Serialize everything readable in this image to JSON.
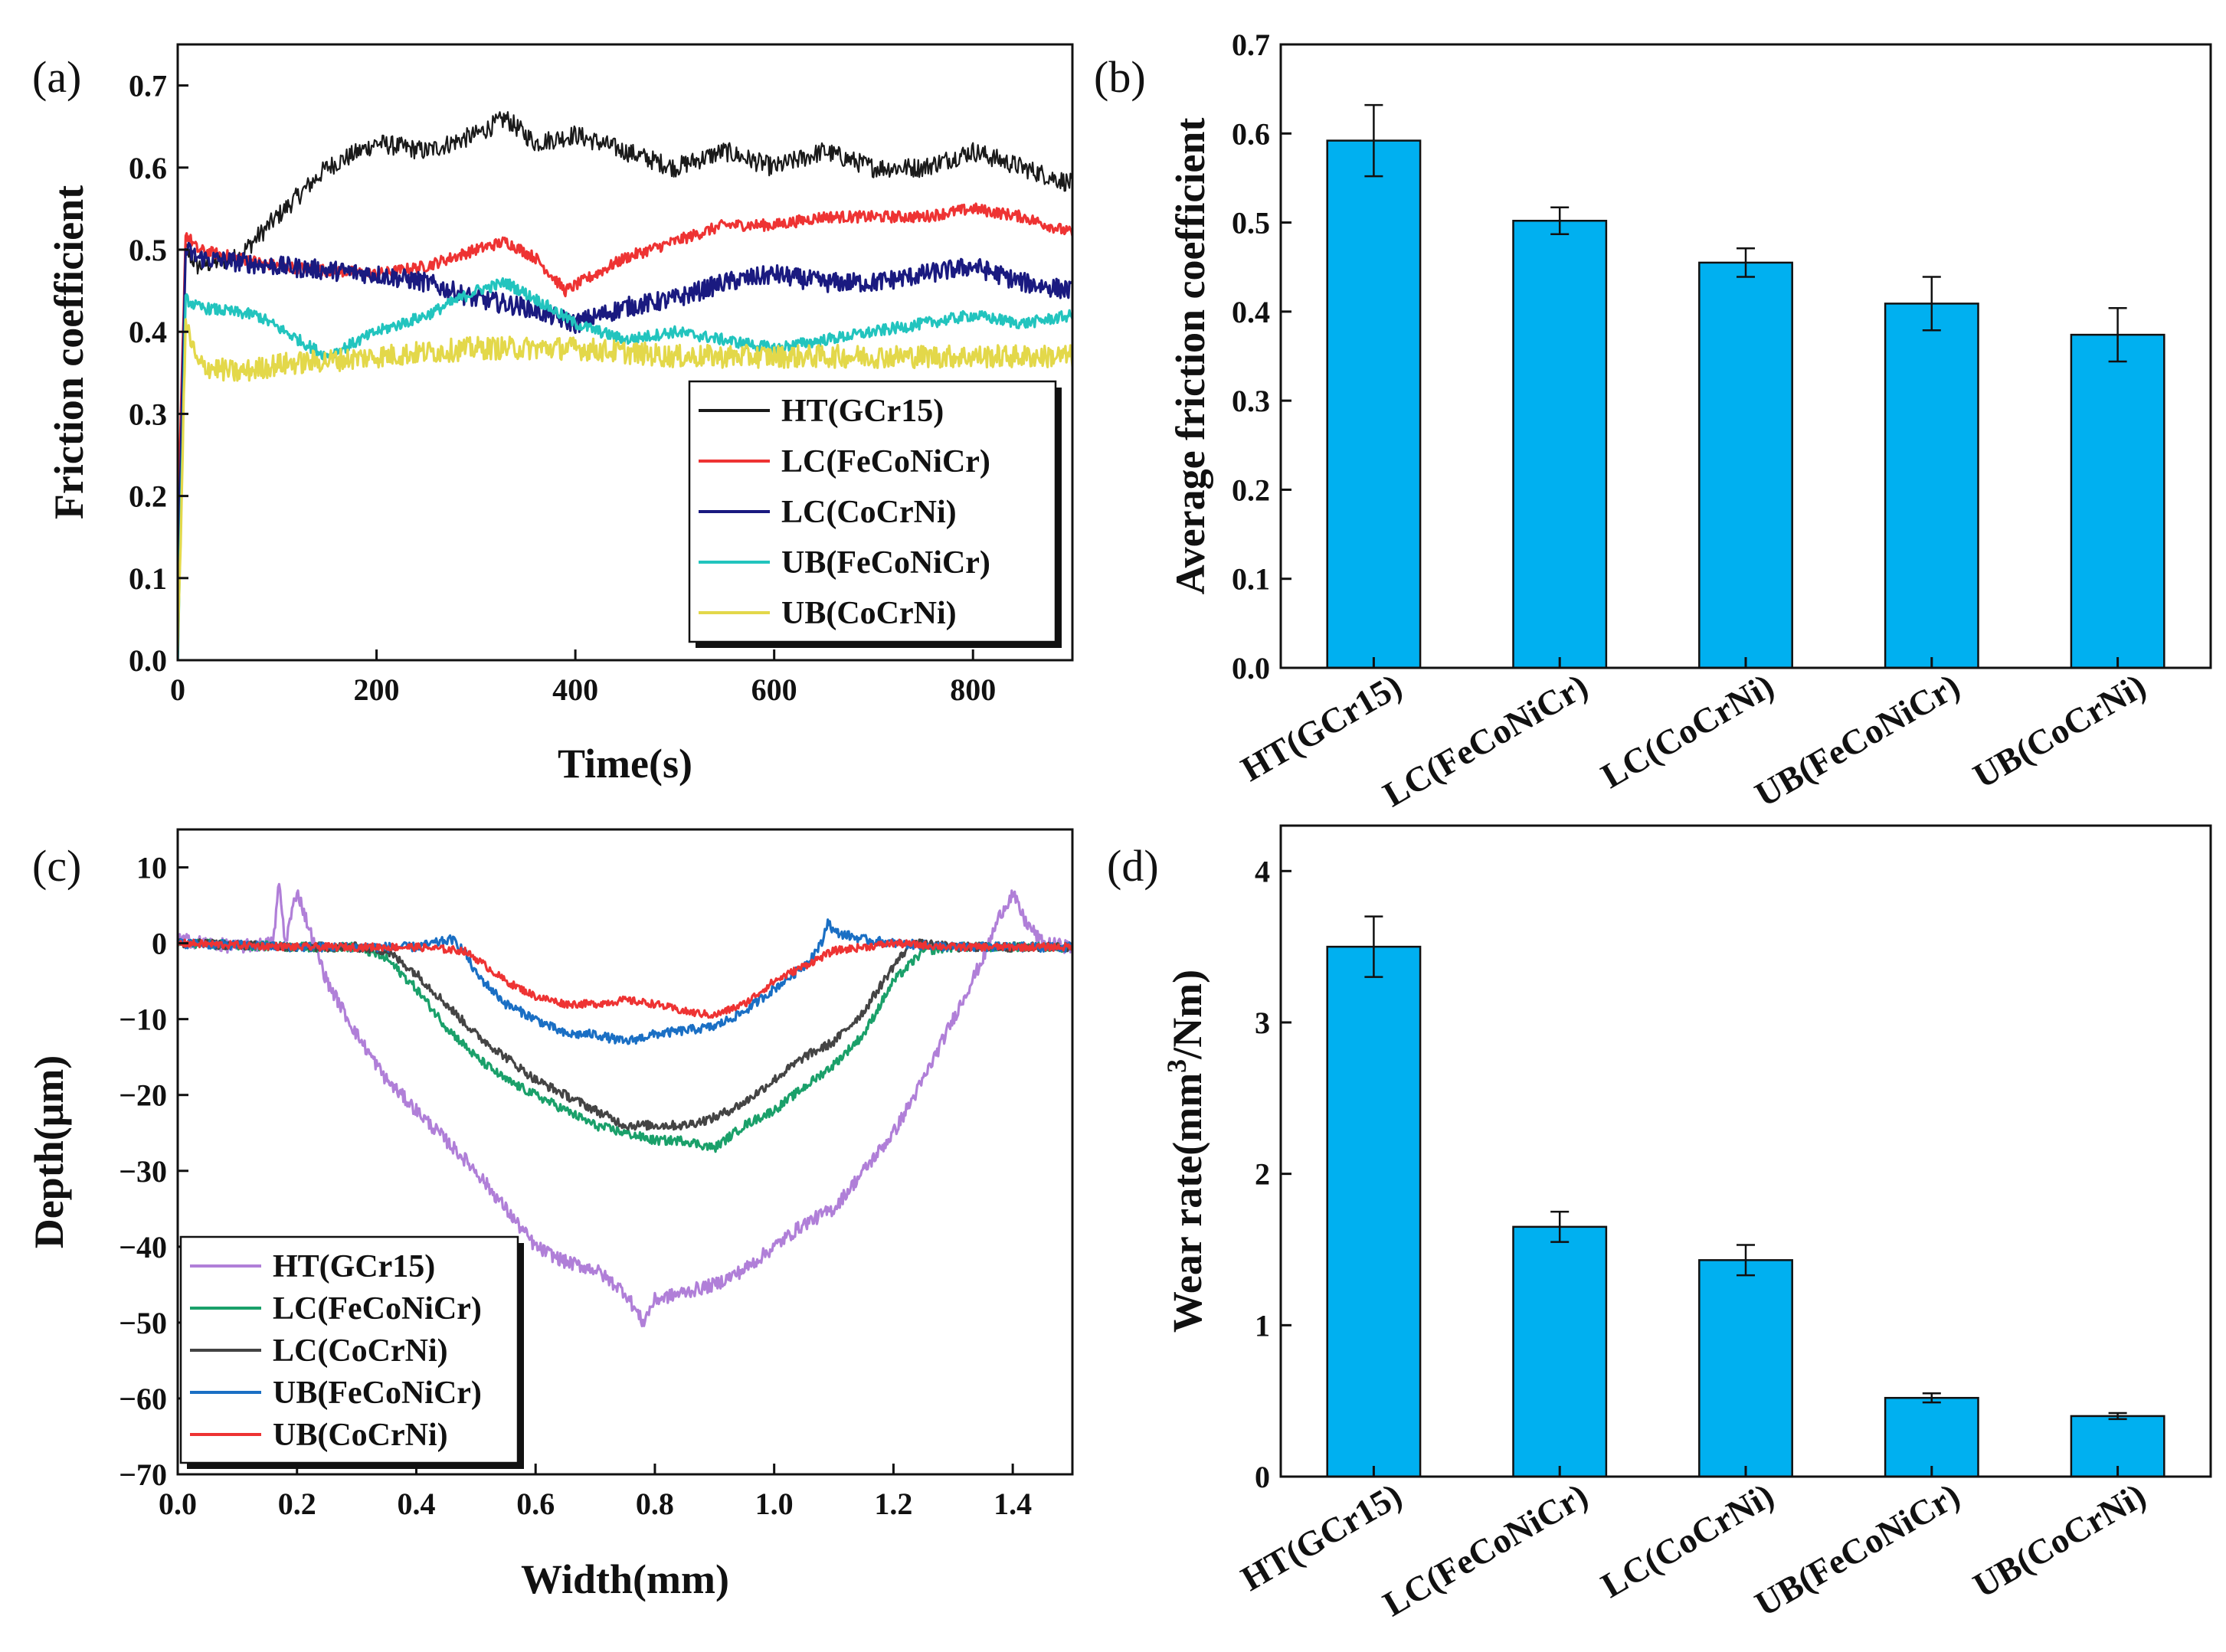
{
  "chart_data": [
    {
      "id": "a",
      "panel_label": "(a)",
      "type": "line",
      "xlabel": "Time(s)",
      "ylabel": "Friction coefficient",
      "xlim": [
        0,
        900
      ],
      "ylim": [
        0.0,
        0.75
      ],
      "xticks": [
        0,
        200,
        400,
        600,
        800
      ],
      "yticks": [
        0.0,
        0.1,
        0.2,
        0.3,
        0.4,
        0.5,
        0.6,
        0.7
      ],
      "xtick_labels": [
        "0",
        "200",
        "400",
        "600",
        "800"
      ],
      "ytick_labels": [
        "0.0",
        "0.1",
        "0.2",
        "0.3",
        "0.4",
        "0.5",
        "0.6",
        "0.7"
      ],
      "legend_position": "bottom-right",
      "series": [
        {
          "name": "HT(GCr15)",
          "color": "#1a1a1a",
          "noise": 0.012,
          "x": [
            0,
            8,
            20,
            60,
            100,
            150,
            200,
            250,
            300,
            330,
            360,
            400,
            450,
            500,
            550,
            600,
            650,
            700,
            750,
            800,
            850,
            900
          ],
          "y": [
            0.0,
            0.5,
            0.48,
            0.49,
            0.54,
            0.6,
            0.63,
            0.62,
            0.64,
            0.66,
            0.63,
            0.64,
            0.62,
            0.6,
            0.62,
            0.6,
            0.62,
            0.6,
            0.6,
            0.62,
            0.6,
            0.58
          ]
        },
        {
          "name": "LC(FeCoNiCr)",
          "color": "#ee3333",
          "noise": 0.007,
          "x": [
            0,
            8,
            20,
            100,
            200,
            250,
            300,
            330,
            360,
            390,
            420,
            450,
            500,
            550,
            600,
            650,
            700,
            750,
            800,
            850,
            900
          ],
          "y": [
            0.15,
            0.52,
            0.5,
            0.48,
            0.47,
            0.48,
            0.5,
            0.51,
            0.49,
            0.45,
            0.47,
            0.49,
            0.51,
            0.53,
            0.53,
            0.54,
            0.54,
            0.54,
            0.55,
            0.54,
            0.52
          ]
        },
        {
          "name": "LC(CoCrNi)",
          "color": "#1a1a80",
          "noise": 0.012,
          "x": [
            0,
            8,
            20,
            100,
            200,
            250,
            300,
            350,
            400,
            450,
            500,
            550,
            600,
            650,
            700,
            750,
            800,
            850,
            900
          ],
          "y": [
            0.1,
            0.5,
            0.49,
            0.48,
            0.47,
            0.46,
            0.44,
            0.43,
            0.41,
            0.43,
            0.44,
            0.46,
            0.47,
            0.46,
            0.46,
            0.47,
            0.48,
            0.46,
            0.45
          ]
        },
        {
          "name": "UB(FeCoNiCr)",
          "color": "#22c4be",
          "noise": 0.007,
          "x": [
            0,
            8,
            20,
            80,
            150,
            200,
            250,
            300,
            330,
            360,
            400,
            450,
            500,
            550,
            600,
            650,
            700,
            750,
            800,
            850,
            900
          ],
          "y": [
            0.0,
            0.44,
            0.43,
            0.42,
            0.37,
            0.4,
            0.42,
            0.45,
            0.46,
            0.44,
            0.41,
            0.39,
            0.4,
            0.39,
            0.38,
            0.39,
            0.4,
            0.41,
            0.42,
            0.41,
            0.42
          ]
        },
        {
          "name": "UB(CoCrNi)",
          "color": "#e3d84a",
          "noise": 0.014,
          "x": [
            0,
            8,
            20,
            60,
            100,
            200,
            300,
            400,
            500,
            600,
            700,
            800,
            900
          ],
          "y": [
            0.0,
            0.41,
            0.36,
            0.35,
            0.36,
            0.37,
            0.38,
            0.38,
            0.37,
            0.37,
            0.37,
            0.37,
            0.37
          ]
        }
      ]
    },
    {
      "id": "b",
      "panel_label": "(b)",
      "type": "bar",
      "ylabel": "Average friction coefficient",
      "ylim": [
        0.0,
        0.7
      ],
      "yticks": [
        0.0,
        0.1,
        0.2,
        0.3,
        0.4,
        0.5,
        0.6,
        0.7
      ],
      "ytick_labels": [
        "0.0",
        "0.1",
        "0.2",
        "0.3",
        "0.4",
        "0.5",
        "0.6",
        "0.7"
      ],
      "categories": [
        "HT(GCr15)",
        "LC(FeCoNiCr)",
        "LC(CoCrNi)",
        "UB(FeCoNiCr)",
        "UB(CoCrNi)"
      ],
      "values": [
        0.592,
        0.502,
        0.455,
        0.409,
        0.374
      ],
      "errors": [
        0.04,
        0.015,
        0.016,
        0.03,
        0.03
      ],
      "bar_color": "#00b0f0"
    },
    {
      "id": "c",
      "panel_label": "(c)",
      "type": "line",
      "xlabel": "Width(mm)",
      "ylabel": "Depth(μm)",
      "xlim": [
        0.0,
        1.5
      ],
      "ylim": [
        -70,
        15
      ],
      "xticks": [
        0.0,
        0.2,
        0.4,
        0.6,
        0.8,
        1.0,
        1.2,
        1.4
      ],
      "yticks": [
        -70,
        -60,
        -50,
        -40,
        -30,
        -20,
        -10,
        0,
        10
      ],
      "xtick_labels": [
        "0.0",
        "0.2",
        "0.4",
        "0.6",
        "0.8",
        "1.0",
        "1.2",
        "1.4"
      ],
      "ytick_labels": [
        "−70",
        "−60",
        "−50",
        "−40",
        "−30",
        "−20",
        "−10",
        "0",
        "10"
      ],
      "legend_position": "bottom-left",
      "series": [
        {
          "name": "HT(GCr15)",
          "color": "#b07fd8",
          "noise": 0.9,
          "x": [
            0.0,
            0.1,
            0.16,
            0.17,
            0.18,
            0.2,
            0.22,
            0.25,
            0.3,
            0.35,
            0.4,
            0.5,
            0.55,
            0.6,
            0.65,
            0.7,
            0.75,
            0.78,
            0.8,
            0.85,
            0.9,
            0.95,
            1.0,
            1.05,
            1.1,
            1.15,
            1.2,
            1.25,
            1.3,
            1.35,
            1.38,
            1.4,
            1.42,
            1.45,
            1.5
          ],
          "y": [
            0.5,
            -0.5,
            0.0,
            8.0,
            0.0,
            7.0,
            2.0,
            -5.0,
            -12.0,
            -18.0,
            -22.0,
            -30.0,
            -35.0,
            -40.0,
            -42.0,
            -43.0,
            -46.0,
            -50.0,
            -47.0,
            -46.0,
            -45.0,
            -43.0,
            -40.0,
            -37.0,
            -35.0,
            -30.0,
            -25.0,
            -18.0,
            -10.0,
            -2.0,
            4.0,
            6.5,
            3.0,
            0.0,
            -0.5
          ]
        },
        {
          "name": "LC(FeCoNiCr)",
          "color": "#1aa06a",
          "noise": 0.6,
          "x": [
            0.0,
            0.2,
            0.3,
            0.35,
            0.4,
            0.45,
            0.5,
            0.55,
            0.6,
            0.65,
            0.7,
            0.75,
            0.8,
            0.85,
            0.9,
            0.95,
            1.0,
            1.05,
            1.1,
            1.15,
            1.2,
            1.25,
            1.3,
            1.5
          ],
          "y": [
            0.0,
            -0.5,
            -0.5,
            -2.0,
            -6.0,
            -11.0,
            -15.0,
            -18.0,
            -20.0,
            -22.0,
            -24.0,
            -25.0,
            -26.0,
            -26.0,
            -27.0,
            -24.0,
            -22.0,
            -19.0,
            -16.0,
            -12.0,
            -5.0,
            -1.0,
            -0.5,
            -0.5
          ]
        },
        {
          "name": "LC(CoCrNi)",
          "color": "#444444",
          "noise": 0.6,
          "x": [
            0.0,
            0.2,
            0.3,
            0.35,
            0.4,
            0.45,
            0.5,
            0.55,
            0.6,
            0.65,
            0.7,
            0.75,
            0.8,
            0.85,
            0.9,
            0.95,
            1.0,
            1.05,
            1.1,
            1.15,
            1.2,
            1.23,
            1.3,
            1.5
          ],
          "y": [
            0.0,
            -0.5,
            -0.5,
            -1.0,
            -4.0,
            -8.0,
            -12.0,
            -15.0,
            -18.0,
            -20.0,
            -22.0,
            -24.0,
            -24.0,
            -24.0,
            -23.0,
            -21.0,
            -18.0,
            -15.0,
            -13.0,
            -9.0,
            -3.0,
            0.0,
            -0.5,
            -0.5
          ]
        },
        {
          "name": "UB(FeCoNiCr)",
          "color": "#1a6fc4",
          "noise": 0.6,
          "x": [
            0.0,
            0.2,
            0.4,
            0.46,
            0.48,
            0.5,
            0.55,
            0.6,
            0.65,
            0.7,
            0.75,
            0.8,
            0.85,
            0.9,
            0.95,
            1.0,
            1.05,
            1.08,
            1.09,
            1.1,
            1.15,
            1.2,
            1.3,
            1.5
          ],
          "y": [
            0.0,
            -0.5,
            -0.5,
            0.5,
            -1.0,
            -4.0,
            -8.0,
            -10.0,
            -12.0,
            -12.0,
            -13.0,
            -12.0,
            -11.5,
            -11.0,
            -9.0,
            -6.0,
            -3.0,
            0.0,
            3.0,
            1.5,
            0.5,
            0.0,
            -0.5,
            -0.5
          ]
        },
        {
          "name": "UB(CoCrNi)",
          "color": "#ee3333",
          "noise": 0.5,
          "x": [
            0.0,
            0.2,
            0.4,
            0.48,
            0.5,
            0.55,
            0.6,
            0.65,
            0.7,
            0.75,
            0.8,
            0.85,
            0.9,
            0.95,
            1.0,
            1.05,
            1.1,
            1.2,
            1.3,
            1.5
          ],
          "y": [
            0.0,
            -0.5,
            -0.5,
            -1.0,
            -2.0,
            -5.0,
            -7.0,
            -8.0,
            -8.0,
            -7.5,
            -8.0,
            -9.0,
            -9.5,
            -8.0,
            -5.0,
            -3.0,
            -1.0,
            0.0,
            -0.5,
            -0.5
          ]
        }
      ]
    },
    {
      "id": "d",
      "panel_label": "(d)",
      "type": "bar",
      "ylabel_main": "Wear rate(mm",
      "ylabel_sup": "3",
      "ylabel_tail": "/Nm)",
      "ylim": [
        0,
        4.3
      ],
      "yticks": [
        0,
        1,
        2,
        3,
        4
      ],
      "ytick_labels": [
        "0",
        "1",
        "2",
        "3",
        "4"
      ],
      "categories": [
        "HT(GCr15)",
        "LC(FeCoNiCr)",
        "LC(CoCrNi)",
        "UB(FeCoNiCr)",
        "UB(CoCrNi)"
      ],
      "values": [
        3.5,
        1.65,
        1.43,
        0.52,
        0.4
      ],
      "errors": [
        0.2,
        0.1,
        0.1,
        0.03,
        0.02
      ],
      "bar_color": "#00b0f0"
    }
  ]
}
